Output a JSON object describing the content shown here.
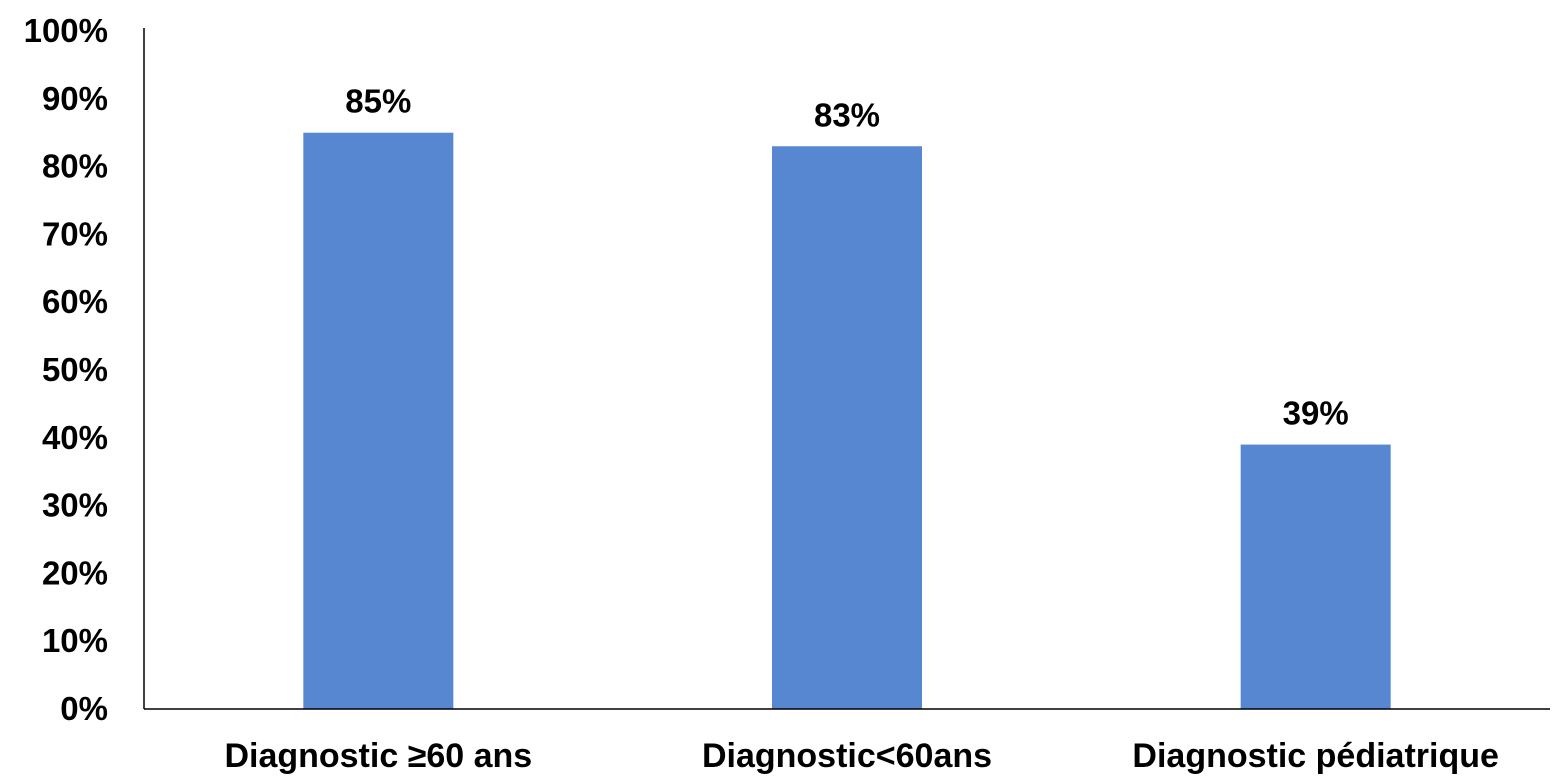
{
  "chart_data": {
    "type": "bar",
    "categories": [
      "Diagnostic ≥60 ans",
      "Diagnostic<60ans",
      "Diagnostic pédiatrique"
    ],
    "values": [
      85,
      83,
      39
    ],
    "data_labels": [
      "85%",
      "83%",
      "39%"
    ],
    "yticks": [
      "0%",
      "10%",
      "20%",
      "30%",
      "40%",
      "50%",
      "60%",
      "70%",
      "80%",
      "90%",
      "100%"
    ],
    "ylim": [
      0,
      100
    ],
    "title": "",
    "xlabel": "",
    "ylabel": "",
    "grid": false,
    "legend": "none",
    "bar_color": "#5687D0",
    "axis_color": "#000000"
  }
}
